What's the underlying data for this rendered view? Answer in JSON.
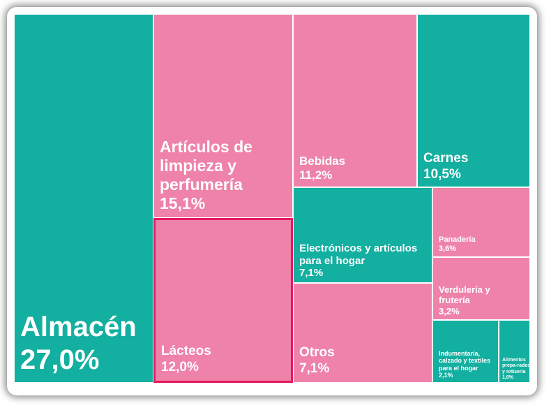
{
  "chart_data": {
    "type": "treemap",
    "colors": {
      "teal": "#13afa0",
      "pink": "#ee82a9",
      "highlight": "#e6195f"
    },
    "items": [
      {
        "id": "almacen",
        "label": "Almacén",
        "value": 27.0,
        "display": "27,0%",
        "color": "teal"
      },
      {
        "id": "limpieza",
        "label": "Artículos de limpieza y perfumería",
        "value": 15.1,
        "display": "15,1%",
        "color": "pink"
      },
      {
        "id": "lacteos",
        "label": "Lácteos",
        "value": 12.0,
        "display": "12,0%",
        "color": "pink",
        "highlighted": true
      },
      {
        "id": "bebidas",
        "label": "Bebidas",
        "value": 11.2,
        "display": "11,2%",
        "color": "pink"
      },
      {
        "id": "carnes",
        "label": "Carnes",
        "value": 10.5,
        "display": "10,5%",
        "color": "teal"
      },
      {
        "id": "electronicos",
        "label": "Electrónicos y artículos para el hogar",
        "value": 7.1,
        "display": "7,1%",
        "color": "teal"
      },
      {
        "id": "otros",
        "label": "Otros",
        "value": 7.1,
        "display": "7,1%",
        "color": "pink"
      },
      {
        "id": "panaderia",
        "label": "Panadería",
        "value": 3.6,
        "display": "3,6%",
        "color": "pink"
      },
      {
        "id": "verduleria",
        "label": "Verdulería y frutería",
        "value": 3.2,
        "display": "3,2%",
        "color": "pink"
      },
      {
        "id": "indumentaria",
        "label": "Indumentaria, calzado y textiles para el hogar",
        "value": 2.1,
        "display": "2,1%",
        "color": "teal"
      },
      {
        "id": "alimentos",
        "label": "Alimentos prepa-rados y rotisería",
        "value": 1.0,
        "display": "1,0%",
        "color": "teal"
      }
    ]
  }
}
